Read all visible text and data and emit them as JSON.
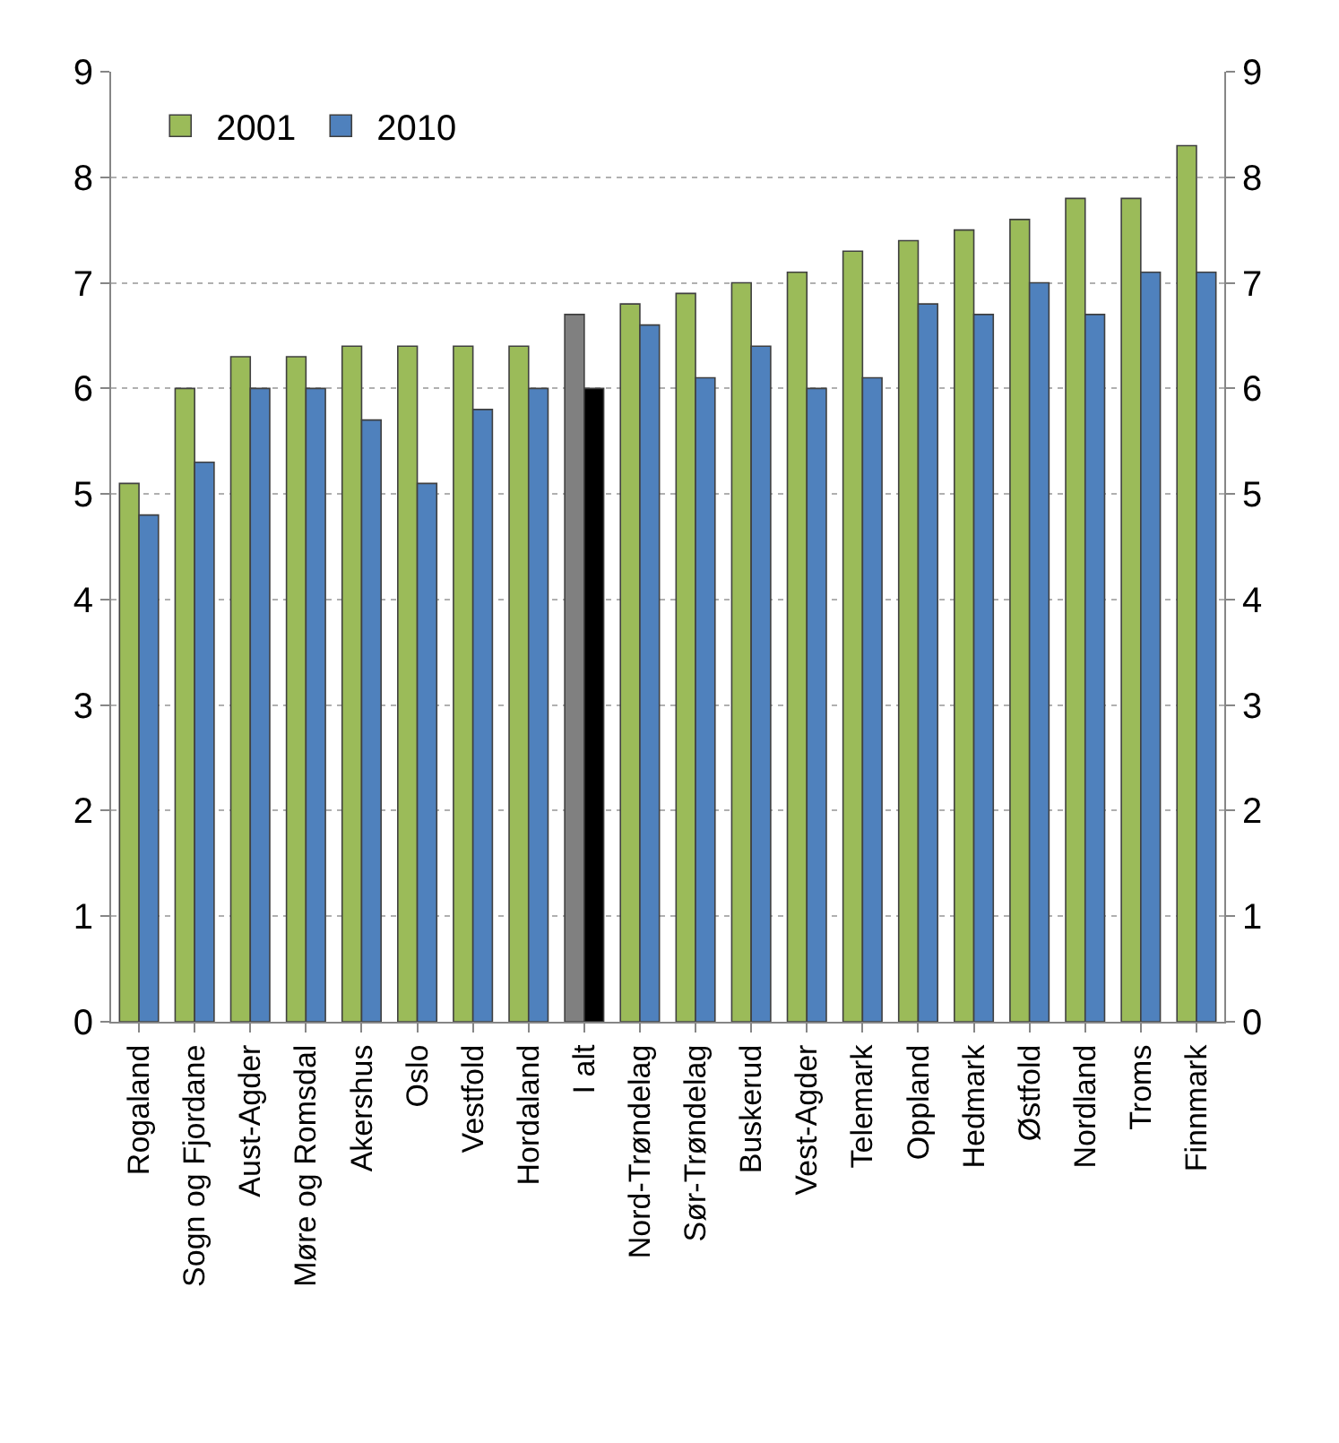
{
  "chart_data": {
    "type": "bar",
    "categories": [
      "Rogaland",
      "Sogn og Fjordane",
      "Aust-Agder",
      "Møre og Romsdal",
      "Akershus",
      "Oslo",
      "Vestfold",
      "Hordaland",
      "I alt",
      "Nord-Trøndelag",
      "Sør-Trøndelag",
      "Buskerud",
      "Vest-Agder",
      "Telemark",
      "Oppland",
      "Hedmark",
      "Østfold",
      "Nordland",
      "Troms",
      "Finnmark"
    ],
    "series": [
      {
        "name": "2001",
        "colors": [
          "#9bbb59",
          "#9bbb59",
          "#9bbb59",
          "#9bbb59",
          "#9bbb59",
          "#9bbb59",
          "#9bbb59",
          "#9bbb59",
          "#808080",
          "#9bbb59",
          "#9bbb59",
          "#9bbb59",
          "#9bbb59",
          "#9bbb59",
          "#9bbb59",
          "#9bbb59",
          "#9bbb59",
          "#9bbb59",
          "#9bbb59",
          "#9bbb59"
        ],
        "values": [
          5.1,
          6.0,
          6.3,
          6.3,
          6.4,
          6.4,
          6.4,
          6.4,
          6.7,
          6.8,
          6.9,
          7.0,
          7.1,
          7.3,
          7.4,
          7.5,
          7.6,
          7.8,
          7.8,
          8.3
        ]
      },
      {
        "name": "2010",
        "colors": [
          "#4f81bd",
          "#4f81bd",
          "#4f81bd",
          "#4f81bd",
          "#4f81bd",
          "#4f81bd",
          "#4f81bd",
          "#4f81bd",
          "#000000",
          "#4f81bd",
          "#4f81bd",
          "#4f81bd",
          "#4f81bd",
          "#4f81bd",
          "#4f81bd",
          "#4f81bd",
          "#4f81bd",
          "#4f81bd",
          "#4f81bd",
          "#4f81bd"
        ],
        "values": [
          4.8,
          5.3,
          6.0,
          6.0,
          5.7,
          5.1,
          5.8,
          6.0,
          6.0,
          6.6,
          6.1,
          6.4,
          6.0,
          6.1,
          6.8,
          6.7,
          7.0,
          6.7,
          7.1,
          7.1
        ]
      }
    ],
    "ylim": [
      0,
      9
    ],
    "yticks": [
      0,
      1,
      2,
      3,
      4,
      5,
      6,
      7,
      8,
      9
    ],
    "y2lim": [
      0,
      9
    ],
    "y2ticks": [
      0,
      1,
      2,
      3,
      4,
      5,
      6,
      7,
      8,
      9
    ],
    "grid": "y",
    "legend": "top left"
  }
}
